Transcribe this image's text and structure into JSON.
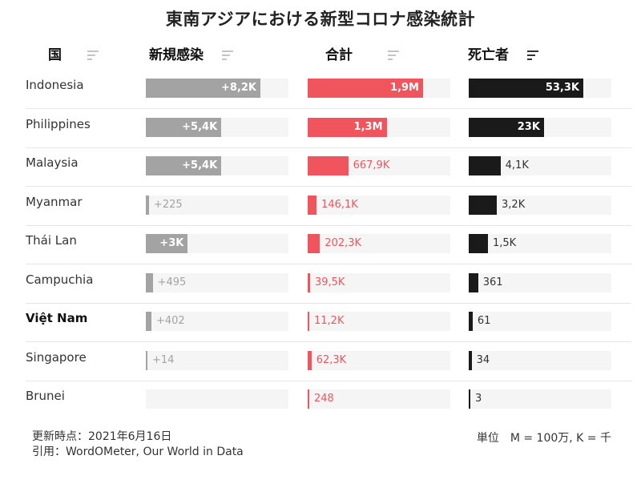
{
  "chart_data": {
    "type": "table",
    "title": "東南アジアにおける新型コロナ感染統計",
    "columns": {
      "country": "国",
      "new_cases": "新規感染",
      "total_cases": "合計",
      "deaths": "死亡者"
    },
    "sorted_by": "deaths",
    "colors": {
      "new_cases": "#a3a3a3",
      "total_cases": "#f0555d",
      "deaths": "#1a1a1a",
      "track": "#f5f5f5",
      "text_inside": "#ffffff",
      "new_cases_label_outside": "#a3a3a3",
      "total_cases_label_outside": "#f0555d",
      "deaths_label_outside": "#333333"
    },
    "rows": [
      {
        "country": "Indonesia",
        "highlight": false,
        "new_cases": 8200,
        "new_cases_label": "+8,2K",
        "total_cases": 1900000,
        "total_cases_label": "1,9M",
        "deaths": 53300,
        "deaths_label": "53,3K"
      },
      {
        "country": "Philippines",
        "highlight": false,
        "new_cases": 5400,
        "new_cases_label": "+5,4K",
        "total_cases": 1300000,
        "total_cases_label": "1,3M",
        "deaths": 23000,
        "deaths_label": "23K"
      },
      {
        "country": "Malaysia",
        "highlight": false,
        "new_cases": 5400,
        "new_cases_label": "+5,4K",
        "total_cases": 667900,
        "total_cases_label": "667,9K",
        "deaths": 4100,
        "deaths_label": "4,1K"
      },
      {
        "country": "Myanmar",
        "highlight": false,
        "new_cases": 225,
        "new_cases_label": "+225",
        "total_cases": 146100,
        "total_cases_label": "146,1K",
        "deaths": 3200,
        "deaths_label": "3,2K"
      },
      {
        "country": "Thái Lan",
        "highlight": false,
        "new_cases": 3000,
        "new_cases_label": "+3K",
        "total_cases": 202300,
        "total_cases_label": "202,3K",
        "deaths": 1500,
        "deaths_label": "1,5K"
      },
      {
        "country": "Campuchia",
        "highlight": false,
        "new_cases": 495,
        "new_cases_label": "+495",
        "total_cases": 39500,
        "total_cases_label": "39,5K",
        "deaths": 361,
        "deaths_label": "361"
      },
      {
        "country": "Việt Nam",
        "highlight": true,
        "new_cases": 402,
        "new_cases_label": "+402",
        "total_cases": 11200,
        "total_cases_label": "11,2K",
        "deaths": 61,
        "deaths_label": "61"
      },
      {
        "country": "Singapore",
        "highlight": false,
        "new_cases": 14,
        "new_cases_label": "+14",
        "total_cases": 62300,
        "total_cases_label": "62,3K",
        "deaths": 34,
        "deaths_label": "34"
      },
      {
        "country": "Brunei",
        "highlight": false,
        "new_cases": 0,
        "new_cases_label": "",
        "total_cases": 248,
        "total_cases_label": "248",
        "deaths": 3,
        "deaths_label": "3"
      }
    ]
  },
  "footer": {
    "updated": "更新時点：2021年6月16日",
    "source": "引用：WordOMeter, Our World in Data",
    "units": "単位　M = 100万, K = 千"
  }
}
